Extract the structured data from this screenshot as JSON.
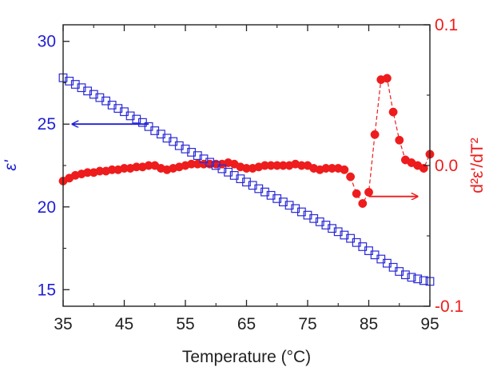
{
  "chart_data": {
    "type": "scatter",
    "xlabel": "Temperature (°C)",
    "ylabel_left": "ε'",
    "ylabel_right": "d²ε'/dT²",
    "xlim": [
      35,
      95
    ],
    "ylim_left": [
      14,
      31
    ],
    "ylim_right": [
      -0.1,
      0.1
    ],
    "x_ticks": [
      "35",
      "45",
      "55",
      "65",
      "75",
      "85",
      "95"
    ],
    "y_left_ticks": [
      "15",
      "20",
      "25",
      "30"
    ],
    "y_right_ticks": [
      "-0.1",
      "0.0",
      "0.1"
    ],
    "colors": {
      "left_axis": "#1f1fd6",
      "right_axis": "#ee1c1c",
      "frame": "#222222"
    },
    "series": [
      {
        "axis": "left",
        "marker": "open-square",
        "color": "#2a2ad6",
        "points": [
          [
            35,
            27.8
          ],
          [
            36,
            27.6
          ],
          [
            37,
            27.4
          ],
          [
            38,
            27.2
          ],
          [
            39,
            27.0
          ],
          [
            40,
            26.8
          ],
          [
            41,
            26.6
          ],
          [
            42,
            26.4
          ],
          [
            43,
            26.15
          ],
          [
            44,
            25.95
          ],
          [
            45,
            25.75
          ],
          [
            46,
            25.5
          ],
          [
            47,
            25.3
          ],
          [
            48,
            25.1
          ],
          [
            49,
            24.85
          ],
          [
            50,
            24.6
          ],
          [
            51,
            24.4
          ],
          [
            52,
            24.15
          ],
          [
            53,
            23.95
          ],
          [
            54,
            23.7
          ],
          [
            55,
            23.5
          ],
          [
            56,
            23.3
          ],
          [
            57,
            23.1
          ],
          [
            58,
            22.9
          ],
          [
            59,
            22.7
          ],
          [
            60,
            22.5
          ],
          [
            61,
            22.3
          ],
          [
            62,
            22.1
          ],
          [
            63,
            21.9
          ],
          [
            64,
            21.7
          ],
          [
            65,
            21.5
          ],
          [
            66,
            21.3
          ],
          [
            67,
            21.1
          ],
          [
            68,
            20.9
          ],
          [
            69,
            20.7
          ],
          [
            70,
            20.5
          ],
          [
            71,
            20.3
          ],
          [
            72,
            20.1
          ],
          [
            73,
            19.9
          ],
          [
            74,
            19.7
          ],
          [
            75,
            19.5
          ],
          [
            76,
            19.3
          ],
          [
            77,
            19.1
          ],
          [
            78,
            18.9
          ],
          [
            79,
            18.7
          ],
          [
            80,
            18.5
          ],
          [
            81,
            18.3
          ],
          [
            82,
            18.1
          ],
          [
            83,
            17.85
          ],
          [
            84,
            17.6
          ],
          [
            85,
            17.35
          ],
          [
            86,
            17.1
          ],
          [
            87,
            16.85
          ],
          [
            88,
            16.6
          ],
          [
            89,
            16.35
          ],
          [
            90,
            16.1
          ],
          [
            91,
            15.9
          ],
          [
            92,
            15.75
          ],
          [
            93,
            15.65
          ],
          [
            94,
            15.55
          ],
          [
            95,
            15.5
          ]
        ]
      },
      {
        "axis": "right",
        "marker": "filled-circle",
        "color": "#ee1c1c",
        "connect_from_x": 82,
        "points": [
          [
            35,
            -0.011
          ],
          [
            36,
            -0.009
          ],
          [
            37,
            -0.007
          ],
          [
            38,
            -0.006
          ],
          [
            39,
            -0.005
          ],
          [
            40,
            -0.005
          ],
          [
            41,
            -0.004
          ],
          [
            42,
            -0.004
          ],
          [
            43,
            -0.003
          ],
          [
            44,
            -0.003
          ],
          [
            45,
            -0.002
          ],
          [
            46,
            -0.002
          ],
          [
            47,
            -0.001
          ],
          [
            48,
            -0.001
          ],
          [
            49,
            0.0
          ],
          [
            50,
            0.0
          ],
          [
            51,
            -0.002
          ],
          [
            52,
            -0.003
          ],
          [
            53,
            -0.002
          ],
          [
            54,
            -0.001
          ],
          [
            55,
            0.0
          ],
          [
            56,
            0.001
          ],
          [
            57,
            0.001
          ],
          [
            58,
            0.001
          ],
          [
            59,
            0.001
          ],
          [
            60,
            0.001
          ],
          [
            61,
            0.001
          ],
          [
            62,
            0.002
          ],
          [
            63,
            0.001
          ],
          [
            64,
            -0.001
          ],
          [
            65,
            -0.002
          ],
          [
            66,
            -0.002
          ],
          [
            67,
            -0.001
          ],
          [
            68,
            0.0
          ],
          [
            69,
            0.0
          ],
          [
            70,
            0.0
          ],
          [
            71,
            0.0
          ],
          [
            72,
            0.0
          ],
          [
            73,
            0.001
          ],
          [
            74,
            0.0
          ],
          [
            75,
            0.0
          ],
          [
            76,
            -0.002
          ],
          [
            77,
            -0.003
          ],
          [
            78,
            -0.002
          ],
          [
            79,
            -0.002
          ],
          [
            80,
            -0.002
          ],
          [
            81,
            -0.003
          ],
          [
            82,
            -0.008
          ],
          [
            83,
            -0.02
          ],
          [
            84,
            -0.027
          ],
          [
            85,
            -0.019
          ],
          [
            86,
            0.022
          ],
          [
            87,
            0.061
          ],
          [
            88,
            0.062
          ],
          [
            89,
            0.038
          ],
          [
            90,
            0.018
          ],
          [
            91,
            0.004
          ],
          [
            92,
            0.002
          ],
          [
            93,
            0.0
          ],
          [
            94,
            -0.002
          ],
          [
            95,
            0.008
          ]
        ]
      }
    ],
    "annotations": [
      {
        "type": "arrow",
        "direction": "left",
        "axis": "left",
        "y": 25.0,
        "x_from": 49,
        "x_to": 36.5,
        "color": "#1f1fd6"
      },
      {
        "type": "arrow",
        "direction": "right",
        "axis": "right",
        "y": -0.022,
        "x_from": 85,
        "x_to": 93,
        "color": "#ee1c1c"
      }
    ]
  }
}
